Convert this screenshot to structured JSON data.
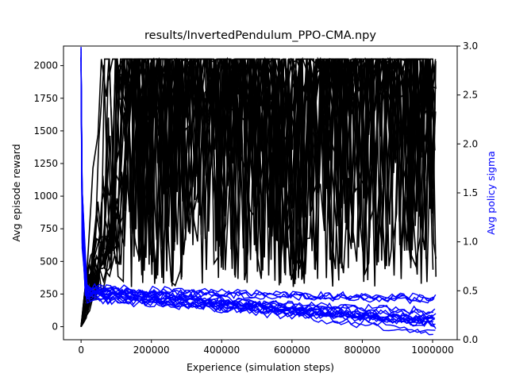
{
  "chart_data": {
    "type": "line",
    "title": "results/InvertedPendulum_PPO-CMA.npy",
    "xlabel": "Experience (simulation steps)",
    "ylabel": "Avg episode reward",
    "y2label": "Avg policy sigma",
    "xlim": [
      -50000,
      1070000
    ],
    "ylim": [
      -100,
      2150
    ],
    "y2lim": [
      0.0,
      3.0
    ],
    "x_ticks": [
      0,
      200000,
      400000,
      600000,
      800000,
      1000000
    ],
    "x_tick_labels": [
      "0",
      "200000",
      "400000",
      "600000",
      "800000",
      "1000000"
    ],
    "y_ticks": [
      0,
      250,
      500,
      750,
      1000,
      1250,
      1500,
      1750,
      2000
    ],
    "y_tick_labels": [
      "0",
      "250",
      "500",
      "750",
      "1000",
      "1250",
      "1500",
      "1750",
      "2000"
    ],
    "y2_ticks": [
      0.0,
      0.5,
      1.0,
      1.5,
      2.0,
      2.5,
      3.0
    ],
    "y2_tick_labels": [
      "0.0",
      "0.5",
      "1.0",
      "1.5",
      "2.0",
      "2.5",
      "3.0"
    ],
    "colors": {
      "reward": "#000000",
      "sigma": "#0000ff",
      "y2label": "#0000ff"
    },
    "num_runs": 20,
    "x_max": 1010000,
    "reward_cap": 2050,
    "reward_band": [
      300,
      2050
    ],
    "sigma_initial": 3.0,
    "sigma_band_start": [
      0.4,
      0.55
    ],
    "sigma_band_end": [
      0.05,
      0.45
    ]
  }
}
